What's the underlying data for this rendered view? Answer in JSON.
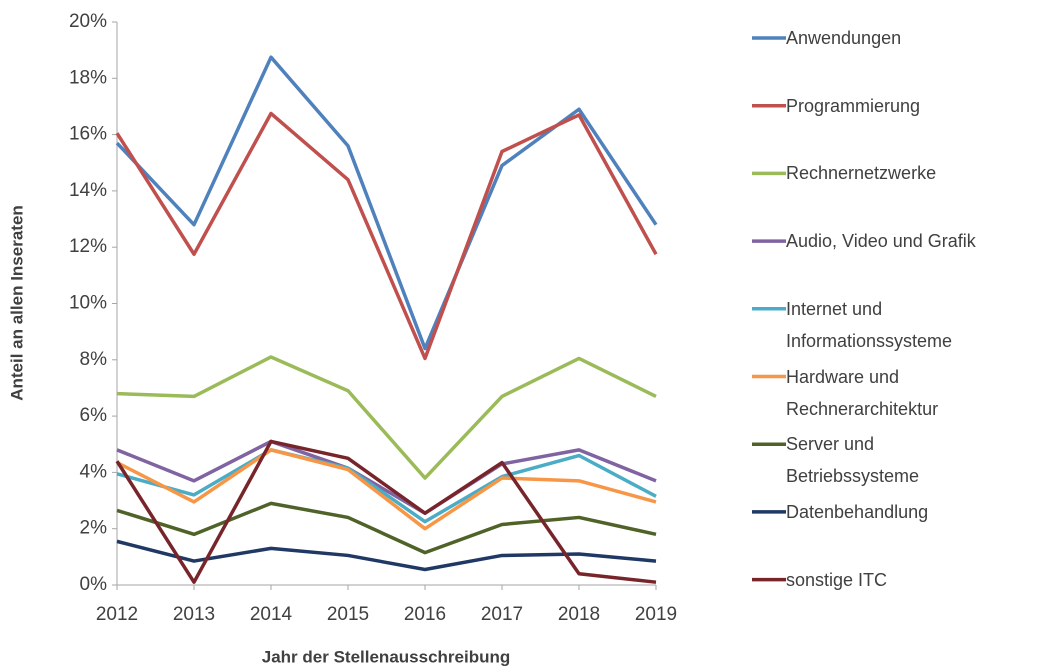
{
  "chart_data": {
    "type": "line",
    "x_label": "Jahr der Stellenausschreibung",
    "y_label": "Anteil an allen Inseraten",
    "categories": [
      "2012",
      "2013",
      "2014",
      "2015",
      "2016",
      "2017",
      "2018",
      "2019"
    ],
    "ylim": [
      0,
      20
    ],
    "yticks": [
      {
        "value": 0,
        "label": "0%"
      },
      {
        "value": 2,
        "label": "2%"
      },
      {
        "value": 4,
        "label": "4%"
      },
      {
        "value": 6,
        "label": "6%"
      },
      {
        "value": 8,
        "label": "8%"
      },
      {
        "value": 10,
        "label": "10%"
      },
      {
        "value": 12,
        "label": "12%"
      },
      {
        "value": 14,
        "label": "14%"
      },
      {
        "value": 16,
        "label": "16%"
      },
      {
        "value": 18,
        "label": "18%"
      },
      {
        "value": 20,
        "label": "20%"
      }
    ],
    "grid": false,
    "legend": "right",
    "series": [
      {
        "name": "Anwendungen",
        "color": "#4f81bd",
        "values": [
          15.7,
          12.8,
          18.75,
          15.6,
          8.4,
          14.9,
          16.9,
          12.8
        ]
      },
      {
        "name": "Programmierung",
        "color": "#c0504d",
        "values": [
          16.05,
          11.75,
          16.75,
          14.4,
          8.05,
          15.4,
          16.7,
          11.75
        ]
      },
      {
        "name": "Rechnernetzwerke",
        "color": "#9bbb59",
        "values": [
          6.8,
          6.7,
          8.1,
          6.9,
          3.8,
          6.7,
          8.05,
          6.7
        ]
      },
      {
        "name": "Audio, Video und Grafik",
        "color": "#8064a2",
        "values": [
          4.8,
          3.7,
          5.1,
          4.15,
          2.55,
          4.3,
          4.8,
          3.7
        ]
      },
      {
        "name": "Internet und Informationssysteme",
        "color": "#4bacc6",
        "values": [
          3.95,
          3.2,
          4.8,
          4.15,
          2.25,
          3.85,
          4.6,
          3.15
        ]
      },
      {
        "name": "Hardware und Rechnerarchitektur",
        "color": "#f79646",
        "values": [
          4.35,
          2.95,
          4.8,
          4.1,
          2.0,
          3.8,
          3.7,
          2.95
        ]
      },
      {
        "name": "Server und Betriebssysteme",
        "color": "#4f6228",
        "values": [
          2.65,
          1.8,
          2.9,
          2.4,
          1.15,
          2.15,
          2.4,
          1.8
        ]
      },
      {
        "name": "Datenbehandlung",
        "color": "#1f3864",
        "values": [
          1.55,
          0.85,
          1.3,
          1.05,
          0.55,
          1.05,
          1.1,
          0.85
        ]
      },
      {
        "name": "sonstige ITC",
        "color": "#77252a",
        "values": [
          4.4,
          0.1,
          5.1,
          4.5,
          2.55,
          4.35,
          0.4,
          0.1
        ]
      }
    ]
  }
}
